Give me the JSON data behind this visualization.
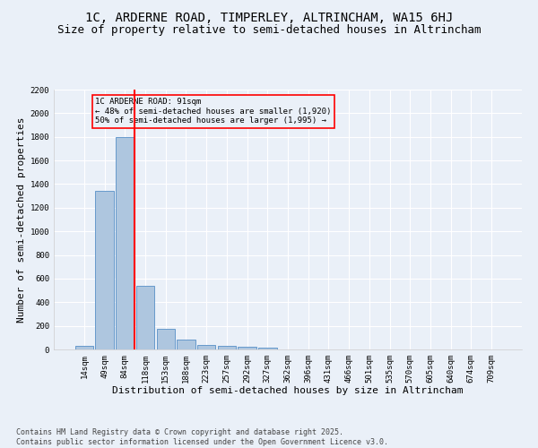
{
  "title": "1C, ARDERNE ROAD, TIMPERLEY, ALTRINCHAM, WA15 6HJ",
  "subtitle": "Size of property relative to semi-detached houses in Altrincham",
  "xlabel": "Distribution of semi-detached houses by size in Altrincham",
  "ylabel": "Number of semi-detached properties",
  "categories": [
    "14sqm",
    "49sqm",
    "84sqm",
    "118sqm",
    "153sqm",
    "188sqm",
    "223sqm",
    "257sqm",
    "292sqm",
    "327sqm",
    "362sqm",
    "396sqm",
    "431sqm",
    "466sqm",
    "501sqm",
    "535sqm",
    "570sqm",
    "605sqm",
    "640sqm",
    "674sqm",
    "709sqm"
  ],
  "values": [
    32,
    1340,
    1795,
    535,
    178,
    82,
    35,
    27,
    20,
    12,
    0,
    0,
    0,
    0,
    0,
    0,
    0,
    0,
    0,
    0,
    0
  ],
  "bar_color": "#aec6df",
  "bar_edge_color": "#6699cc",
  "vline_x_index": 2,
  "vline_color": "red",
  "annotation_title": "1C ARDERNE ROAD: 91sqm",
  "annotation_line1": "← 48% of semi-detached houses are smaller (1,920)",
  "annotation_line2": "50% of semi-detached houses are larger (1,995) →",
  "annotation_box_color": "red",
  "ylim": [
    0,
    2200
  ],
  "yticks": [
    0,
    200,
    400,
    600,
    800,
    1000,
    1200,
    1400,
    1600,
    1800,
    2000,
    2200
  ],
  "bg_color": "#eaf0f8",
  "grid_color": "#ffffff",
  "footer": "Contains HM Land Registry data © Crown copyright and database right 2025.\nContains public sector information licensed under the Open Government Licence v3.0.",
  "title_fontsize": 10,
  "subtitle_fontsize": 9,
  "label_fontsize": 8,
  "tick_fontsize": 6.5,
  "footer_fontsize": 6
}
